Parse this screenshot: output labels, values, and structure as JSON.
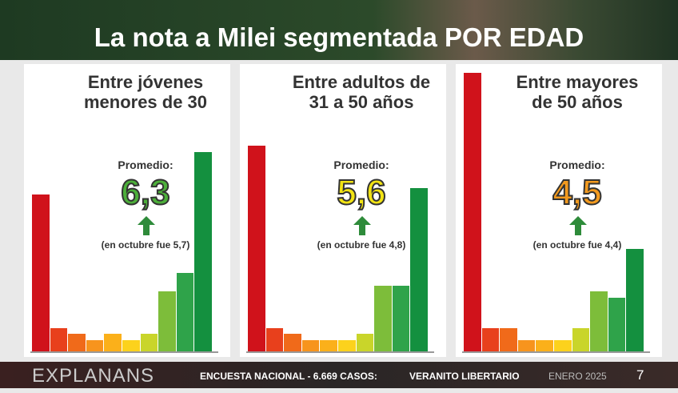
{
  "header": {
    "title": "La nota a Milei segmentada POR EDAD"
  },
  "chart_data": [
    {
      "type": "bar",
      "title": "Entre jóvenes menores de 30",
      "average_label": "Promedio:",
      "average": "6,3",
      "average_color": "#4caf3a",
      "note": "(en octubre fue 5,7)",
      "values": [
        26,
        4,
        3,
        2,
        3,
        2,
        3,
        10,
        13,
        33
      ],
      "colors": [
        "#d0121b",
        "#e8401c",
        "#f06a1a",
        "#f7941d",
        "#fbb01a",
        "#fcd21c",
        "#c9d52a",
        "#7dbd3a",
        "#2fa34a",
        "#14903f"
      ],
      "ylim": [
        0,
        46
      ]
    },
    {
      "type": "bar",
      "title": "Entre adultos de 31 a 50 años",
      "average_label": "Promedio:",
      "average": "5,6",
      "average_color": "#f2e313",
      "note": "(en octubre fue 4,8)",
      "values": [
        34,
        4,
        3,
        2,
        2,
        2,
        3,
        11,
        11,
        27
      ],
      "colors": [
        "#d0121b",
        "#e8401c",
        "#f06a1a",
        "#f7941d",
        "#fbb01a",
        "#fcd21c",
        "#c9d52a",
        "#7dbd3a",
        "#2fa34a",
        "#14903f"
      ],
      "ylim": [
        0,
        46
      ]
    },
    {
      "type": "bar",
      "title": "Entre mayores de 50 años",
      "average_label": "Promedio:",
      "average": "4,5",
      "average_color": "#f39a1e",
      "note": "(en octubre fue 4,4)",
      "values": [
        46,
        4,
        4,
        2,
        2,
        2,
        4,
        10,
        9,
        17
      ],
      "colors": [
        "#d0121b",
        "#e8401c",
        "#f06a1a",
        "#f7941d",
        "#fbb01a",
        "#fcd21c",
        "#c9d52a",
        "#7dbd3a",
        "#2fa34a",
        "#14903f"
      ],
      "ylim": [
        0,
        46
      ]
    }
  ],
  "footer": {
    "brand": "EXPLANANS",
    "survey": "ENCUESTA NACIONAL - 6.669 CASOS:",
    "name": "VERANITO LIBERTARIO",
    "date": "ENERO 2025",
    "page": "7"
  }
}
